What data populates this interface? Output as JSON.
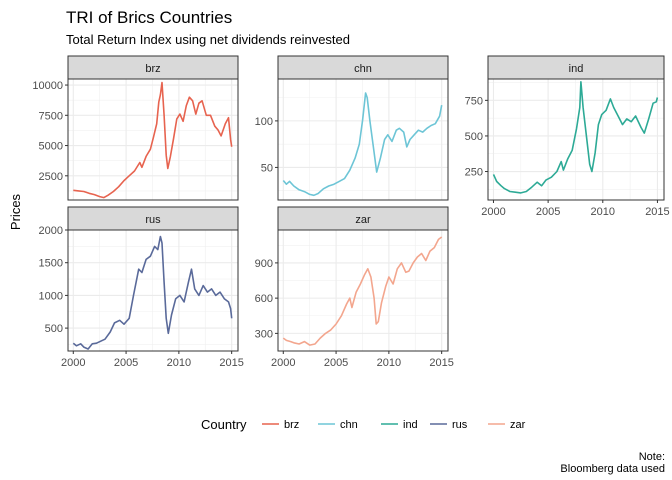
{
  "chart_data": {
    "type": "line",
    "title": "TRI of Brics Countries",
    "subtitle": "Total Return Index using net dividends reinvested",
    "xlabel": "",
    "ylabel": "Prices",
    "caption": [
      "Note:",
      "Bloomberg data used"
    ],
    "legend": {
      "title": "Country",
      "position": "bottom"
    },
    "grid": true,
    "facet_shared_x": true,
    "xlim": [
      1999.5,
      2015.6
    ],
    "x_ticks": [
      2000,
      2005,
      2010,
      2015
    ],
    "panels": [
      {
        "name": "brz",
        "color": "#E7634F",
        "ylim": [
          500,
          10500
        ],
        "y_ticks": [
          2500,
          5000,
          7500,
          10000
        ],
        "points": [
          [
            2000,
            1300
          ],
          [
            2000.5,
            1250
          ],
          [
            2001,
            1200
          ],
          [
            2001.5,
            1050
          ],
          [
            2002,
            950
          ],
          [
            2002.5,
            780
          ],
          [
            2002.9,
            700
          ],
          [
            2003.3,
            900
          ],
          [
            2003.8,
            1200
          ],
          [
            2004.3,
            1600
          ],
          [
            2004.8,
            2100
          ],
          [
            2005.3,
            2500
          ],
          [
            2005.8,
            2900
          ],
          [
            2006.3,
            3600
          ],
          [
            2006.5,
            3200
          ],
          [
            2006.9,
            4100
          ],
          [
            2007.3,
            4700
          ],
          [
            2007.6,
            5700
          ],
          [
            2007.9,
            6800
          ],
          [
            2008.1,
            8600
          ],
          [
            2008.25,
            9200
          ],
          [
            2008.4,
            10200
          ],
          [
            2008.6,
            7500
          ],
          [
            2008.8,
            4200
          ],
          [
            2008.95,
            3100
          ],
          [
            2009.2,
            4100
          ],
          [
            2009.5,
            5600
          ],
          [
            2009.8,
            7200
          ],
          [
            2010.1,
            7600
          ],
          [
            2010.4,
            7000
          ],
          [
            2010.7,
            8300
          ],
          [
            2011.0,
            9000
          ],
          [
            2011.3,
            8700
          ],
          [
            2011.6,
            7600
          ],
          [
            2011.9,
            8500
          ],
          [
            2012.2,
            8700
          ],
          [
            2012.6,
            7500
          ],
          [
            2013.0,
            7500
          ],
          [
            2013.4,
            6600
          ],
          [
            2013.7,
            6300
          ],
          [
            2014.0,
            5800
          ],
          [
            2014.4,
            6800
          ],
          [
            2014.7,
            7300
          ],
          [
            2014.9,
            5500
          ],
          [
            2015.0,
            4900
          ]
        ]
      },
      {
        "name": "chn",
        "color": "#6DC5D6",
        "ylim": [
          15,
          145
        ],
        "y_ticks": [
          50,
          100
        ],
        "points": [
          [
            2000,
            36
          ],
          [
            2000.3,
            32
          ],
          [
            2000.6,
            35
          ],
          [
            2001,
            30
          ],
          [
            2001.5,
            26
          ],
          [
            2002,
            24
          ],
          [
            2002.5,
            21
          ],
          [
            2002.9,
            20
          ],
          [
            2003.3,
            22
          ],
          [
            2003.8,
            27
          ],
          [
            2004.3,
            30
          ],
          [
            2004.8,
            32
          ],
          [
            2005.3,
            35
          ],
          [
            2005.8,
            38
          ],
          [
            2006.3,
            47
          ],
          [
            2006.8,
            60
          ],
          [
            2007.2,
            75
          ],
          [
            2007.5,
            100
          ],
          [
            2007.8,
            130
          ],
          [
            2007.95,
            125
          ],
          [
            2008.2,
            100
          ],
          [
            2008.5,
            75
          ],
          [
            2008.85,
            45
          ],
          [
            2009.2,
            60
          ],
          [
            2009.6,
            80
          ],
          [
            2009.9,
            85
          ],
          [
            2010.3,
            78
          ],
          [
            2010.7,
            90
          ],
          [
            2011.0,
            92
          ],
          [
            2011.4,
            88
          ],
          [
            2011.7,
            72
          ],
          [
            2012.0,
            80
          ],
          [
            2012.4,
            85
          ],
          [
            2012.8,
            90
          ],
          [
            2013.2,
            88
          ],
          [
            2013.6,
            92
          ],
          [
            2014.0,
            95
          ],
          [
            2014.4,
            97
          ],
          [
            2014.8,
            105
          ],
          [
            2015.0,
            117
          ]
        ]
      },
      {
        "name": "ind",
        "color": "#2DAA96",
        "ylim": [
          50,
          900
        ],
        "y_ticks": [
          250,
          500,
          750
        ],
        "points": [
          [
            2000,
            230
          ],
          [
            2000.3,
            180
          ],
          [
            2000.7,
            150
          ],
          [
            2001,
            130
          ],
          [
            2001.5,
            110
          ],
          [
            2002,
            105
          ],
          [
            2002.5,
            100
          ],
          [
            2003,
            110
          ],
          [
            2003.5,
            140
          ],
          [
            2004,
            175
          ],
          [
            2004.4,
            150
          ],
          [
            2004.8,
            190
          ],
          [
            2005.3,
            210
          ],
          [
            2005.8,
            250
          ],
          [
            2006.2,
            320
          ],
          [
            2006.4,
            260
          ],
          [
            2006.8,
            340
          ],
          [
            2007.2,
            400
          ],
          [
            2007.6,
            550
          ],
          [
            2007.9,
            700
          ],
          [
            2008.0,
            880
          ],
          [
            2008.2,
            700
          ],
          [
            2008.5,
            500
          ],
          [
            2008.8,
            300
          ],
          [
            2009.0,
            250
          ],
          [
            2009.3,
            380
          ],
          [
            2009.6,
            580
          ],
          [
            2009.9,
            650
          ],
          [
            2010.3,
            680
          ],
          [
            2010.7,
            760
          ],
          [
            2011.0,
            700
          ],
          [
            2011.4,
            640
          ],
          [
            2011.8,
            580
          ],
          [
            2012.2,
            620
          ],
          [
            2012.6,
            600
          ],
          [
            2013.0,
            640
          ],
          [
            2013.5,
            560
          ],
          [
            2013.8,
            520
          ],
          [
            2014.2,
            620
          ],
          [
            2014.6,
            730
          ],
          [
            2014.9,
            740
          ],
          [
            2015.0,
            770
          ]
        ]
      },
      {
        "name": "rus",
        "color": "#5A6A9A",
        "ylim": [
          150,
          2000
        ],
        "y_ticks": [
          500,
          1000,
          1500,
          2000
        ],
        "points": [
          [
            2000,
            270
          ],
          [
            2000.3,
            230
          ],
          [
            2000.7,
            260
          ],
          [
            2001,
            210
          ],
          [
            2001.4,
            180
          ],
          [
            2001.8,
            260
          ],
          [
            2002.2,
            270
          ],
          [
            2002.6,
            300
          ],
          [
            2003.0,
            330
          ],
          [
            2003.5,
            440
          ],
          [
            2003.9,
            580
          ],
          [
            2004.4,
            620
          ],
          [
            2004.8,
            560
          ],
          [
            2005.3,
            650
          ],
          [
            2005.7,
            1000
          ],
          [
            2006.2,
            1400
          ],
          [
            2006.5,
            1350
          ],
          [
            2006.9,
            1550
          ],
          [
            2007.3,
            1600
          ],
          [
            2007.7,
            1750
          ],
          [
            2008.0,
            1700
          ],
          [
            2008.25,
            1900
          ],
          [
            2008.4,
            1800
          ],
          [
            2008.6,
            1200
          ],
          [
            2008.8,
            650
          ],
          [
            2009.0,
            420
          ],
          [
            2009.3,
            700
          ],
          [
            2009.7,
            950
          ],
          [
            2010.1,
            1000
          ],
          [
            2010.5,
            900
          ],
          [
            2010.9,
            1200
          ],
          [
            2011.2,
            1400
          ],
          [
            2011.5,
            1100
          ],
          [
            2011.9,
            1000
          ],
          [
            2012.3,
            1150
          ],
          [
            2012.7,
            1050
          ],
          [
            2013.1,
            1100
          ],
          [
            2013.5,
            1000
          ],
          [
            2013.9,
            1050
          ],
          [
            2014.3,
            950
          ],
          [
            2014.7,
            900
          ],
          [
            2014.9,
            800
          ],
          [
            2015.0,
            650
          ]
        ]
      },
      {
        "name": "zar",
        "color": "#F3A68E",
        "ylim": [
          150,
          1180
        ],
        "y_ticks": [
          300,
          600,
          900
        ],
        "points": [
          [
            2000,
            260
          ],
          [
            2000.3,
            240
          ],
          [
            2000.7,
            230
          ],
          [
            2001,
            220
          ],
          [
            2001.5,
            210
          ],
          [
            2002,
            230
          ],
          [
            2002.5,
            200
          ],
          [
            2003,
            210
          ],
          [
            2003.5,
            260
          ],
          [
            2004,
            300
          ],
          [
            2004.5,
            330
          ],
          [
            2005,
            380
          ],
          [
            2005.5,
            450
          ],
          [
            2006,
            550
          ],
          [
            2006.3,
            600
          ],
          [
            2006.5,
            520
          ],
          [
            2006.9,
            650
          ],
          [
            2007.3,
            720
          ],
          [
            2007.7,
            800
          ],
          [
            2008.0,
            850
          ],
          [
            2008.3,
            780
          ],
          [
            2008.6,
            600
          ],
          [
            2008.8,
            380
          ],
          [
            2009.0,
            400
          ],
          [
            2009.3,
            560
          ],
          [
            2009.7,
            700
          ],
          [
            2010.0,
            780
          ],
          [
            2010.4,
            720
          ],
          [
            2010.8,
            850
          ],
          [
            2011.2,
            900
          ],
          [
            2011.6,
            820
          ],
          [
            2011.9,
            830
          ],
          [
            2012.3,
            900
          ],
          [
            2012.7,
            950
          ],
          [
            2013.1,
            980
          ],
          [
            2013.5,
            920
          ],
          [
            2013.9,
            1000
          ],
          [
            2014.3,
            1030
          ],
          [
            2014.7,
            1100
          ],
          [
            2015.0,
            1120
          ]
        ]
      }
    ]
  }
}
